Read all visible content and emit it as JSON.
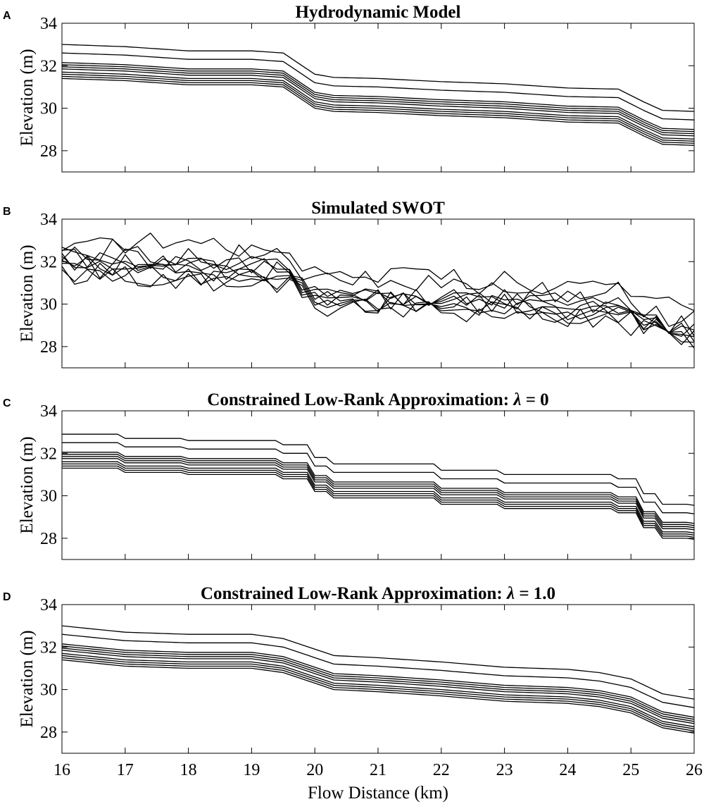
{
  "figure": {
    "xlabel": "Flow Distance (km)"
  },
  "chart_data": [
    {
      "type": "line",
      "panel": "A",
      "title": "Hydrodynamic Model",
      "ylabel": "Elevation (m)",
      "xlim": [
        16,
        26
      ],
      "ylim": [
        27,
        34
      ],
      "xticks": [
        16,
        17,
        18,
        19,
        20,
        21,
        22,
        23,
        24,
        25,
        26
      ],
      "yticks": [
        28,
        30,
        32,
        34
      ],
      "show_xtick_labels": false,
      "style": "smooth",
      "offsets": [
        0.0,
        0.1,
        0.2,
        0.3,
        0.45,
        0.55,
        0.65,
        0.75,
        1.2,
        1.6
      ],
      "base_profile": {
        "x": [
          16,
          17,
          18,
          19,
          19.5,
          20,
          20.3,
          21,
          22,
          23,
          24,
          24.8,
          25.2,
          25.5,
          26
        ],
        "y": [
          31.4,
          31.3,
          31.1,
          31.1,
          31.0,
          30.0,
          29.85,
          29.8,
          29.65,
          29.55,
          29.35,
          29.3,
          28.7,
          28.3,
          28.25
        ]
      }
    },
    {
      "type": "line",
      "panel": "B",
      "title": "Simulated SWOT",
      "ylabel": "Elevation (m)",
      "xlim": [
        16,
        26
      ],
      "ylim": [
        27,
        34
      ],
      "xticks": [
        16,
        17,
        18,
        19,
        20,
        21,
        22,
        23,
        24,
        25,
        26
      ],
      "yticks": [
        28,
        30,
        32,
        34
      ],
      "show_xtick_labels": false,
      "style": "noisy",
      "offsets": [
        0.0,
        0.1,
        0.2,
        0.3,
        0.45,
        0.55,
        0.65,
        0.75,
        1.2,
        1.6
      ],
      "noise_amplitude_m": 0.55,
      "base_profile": {
        "x": [
          16,
          17,
          18,
          19,
          19.5,
          20,
          20.3,
          21,
          22,
          23,
          24,
          24.8,
          25.2,
          25.5,
          26
        ],
        "y": [
          31.4,
          31.3,
          31.1,
          31.1,
          31.0,
          30.0,
          29.85,
          29.8,
          29.65,
          29.55,
          29.35,
          29.3,
          28.7,
          28.3,
          28.25
        ]
      }
    },
    {
      "type": "line",
      "panel": "C",
      "title": "Constrained Low-Rank Approximation: ",
      "title_symbol": "λ",
      "title_suffix": " = 0",
      "ylabel": "Elevation (m)",
      "xlim": [
        16,
        26
      ],
      "ylim": [
        27,
        34
      ],
      "xticks": [
        16,
        17,
        18,
        19,
        20,
        21,
        22,
        23,
        24,
        25,
        26
      ],
      "yticks": [
        28,
        30,
        32,
        34
      ],
      "show_xtick_labels": false,
      "style": "step",
      "offsets": [
        0.0,
        0.1,
        0.2,
        0.3,
        0.45,
        0.55,
        0.65,
        0.75,
        1.2,
        1.6
      ],
      "base_profile": {
        "x": [
          16,
          17,
          18,
          19,
          19.5,
          20,
          20.3,
          21,
          22,
          23,
          24,
          24.8,
          25.2,
          25.5,
          26
        ],
        "y": [
          31.3,
          31.1,
          31.0,
          31.0,
          30.8,
          30.2,
          29.9,
          29.9,
          29.6,
          29.4,
          29.4,
          29.2,
          28.5,
          28.0,
          27.95
        ]
      }
    },
    {
      "type": "line",
      "panel": "D",
      "title": "Constrained Low-Rank Approximation: ",
      "title_symbol": "λ",
      "title_suffix": " = 1.0",
      "ylabel": "Elevation (m)",
      "xlim": [
        16,
        26
      ],
      "ylim": [
        27,
        34
      ],
      "xticks": [
        16,
        17,
        18,
        19,
        20,
        21,
        22,
        23,
        24,
        25,
        26
      ],
      "yticks": [
        28,
        30,
        32,
        34
      ],
      "show_xtick_labels": true,
      "style": "smooth",
      "offsets": [
        0.0,
        0.1,
        0.2,
        0.3,
        0.45,
        0.55,
        0.65,
        0.75,
        1.2,
        1.6
      ],
      "base_profile": {
        "x": [
          16,
          17,
          18,
          19,
          19.5,
          20,
          20.3,
          21,
          22,
          23,
          24,
          24.5,
          25,
          25.5,
          26
        ],
        "y": [
          31.4,
          31.1,
          31.0,
          31.0,
          30.8,
          30.3,
          30.0,
          29.9,
          29.7,
          29.45,
          29.35,
          29.2,
          28.9,
          28.2,
          27.95
        ]
      }
    }
  ]
}
